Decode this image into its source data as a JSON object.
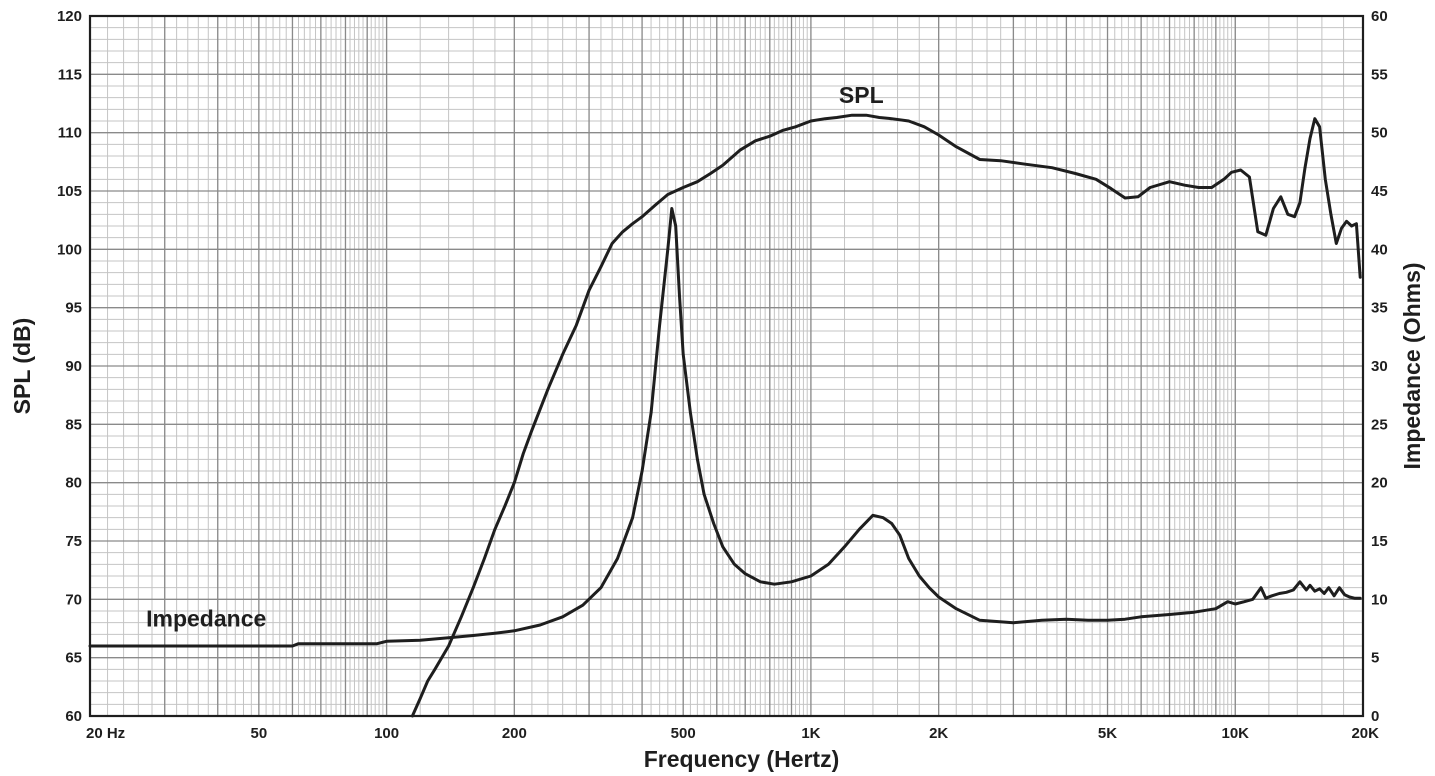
{
  "chart_data": {
    "type": "line",
    "xlabel": "Frequency (Hertz)",
    "ylabel": "SPL (dB)",
    "y2label": "Impedance (Ohms)",
    "xscale": "log",
    "xlim": [
      20,
      20000
    ],
    "ylim": [
      60,
      120
    ],
    "y2lim": [
      0,
      60
    ],
    "grid": true,
    "x_ticks": [
      {
        "value": 20,
        "label": "20  Hz"
      },
      {
        "value": 50,
        "label": "50"
      },
      {
        "value": 100,
        "label": "100"
      },
      {
        "value": 200,
        "label": "200"
      },
      {
        "value": 500,
        "label": "500"
      },
      {
        "value": 1000,
        "label": "1K"
      },
      {
        "value": 2000,
        "label": "2K"
      },
      {
        "value": 5000,
        "label": "5K"
      },
      {
        "value": 10000,
        "label": "10K"
      },
      {
        "value": 20000,
        "label": "20K"
      }
    ],
    "y_ticks": [
      "60",
      "65",
      "70",
      "75",
      "80",
      "85",
      "90",
      "95",
      "100",
      "105",
      "110",
      "115",
      "120"
    ],
    "y2_ticks": [
      "0",
      "5",
      "10",
      "15",
      "20",
      "25",
      "30",
      "35",
      "40",
      "45",
      "50",
      "55",
      "60"
    ],
    "annotations": [
      {
        "text": "SPL",
        "series": "SPL"
      },
      {
        "text": "Impedance",
        "series": "Impedance"
      }
    ],
    "series": [
      {
        "name": "SPL",
        "axis": "left",
        "x": [
          115,
          120,
          125,
          130,
          140,
          150,
          160,
          170,
          180,
          190,
          200,
          210,
          220,
          240,
          260,
          280,
          300,
          320,
          340,
          360,
          380,
          400,
          430,
          460,
          500,
          540,
          580,
          620,
          680,
          740,
          800,
          860,
          920,
          1000,
          1080,
          1150,
          1250,
          1350,
          1450,
          1550,
          1700,
          1850,
          2000,
          2200,
          2500,
          2800,
          3200,
          3700,
          4200,
          4700,
          5100,
          5500,
          5900,
          6300,
          7000,
          7600,
          8200,
          8800,
          9400,
          9800,
          10300,
          10800,
          11300,
          11800,
          12300,
          12800,
          13300,
          13800,
          14200,
          14600,
          15000,
          15400,
          15800,
          16300,
          16800,
          17300,
          17800,
          18300,
          18800,
          19300,
          19700
        ],
        "y": [
          60,
          61.5,
          63,
          64,
          66,
          68.5,
          71,
          73.5,
          76,
          78,
          80,
          82.5,
          84.5,
          88,
          91,
          93.5,
          96.5,
          98.5,
          100.5,
          101.5,
          102.2,
          102.8,
          103.8,
          104.7,
          105.3,
          105.8,
          106.5,
          107.2,
          108.5,
          109.3,
          109.7,
          110.2,
          110.5,
          111,
          111.2,
          111.3,
          111.5,
          111.5,
          111.3,
          111.2,
          111,
          110.5,
          109.8,
          108.8,
          107.7,
          107.6,
          107.3,
          107,
          106.5,
          106,
          105.2,
          104.4,
          104.5,
          105.3,
          105.8,
          105.5,
          105.3,
          105.3,
          106,
          106.6,
          106.8,
          106.2,
          101.5,
          101.2,
          103.5,
          104.5,
          103,
          102.8,
          104,
          107,
          109.5,
          111.2,
          110.5,
          106,
          103,
          100.5,
          101.8,
          102.4,
          102,
          102.2,
          97.6
        ]
      },
      {
        "name": "Impedance",
        "axis": "right",
        "x": [
          20,
          60,
          62,
          95,
          100,
          120,
          140,
          160,
          180,
          200,
          230,
          260,
          290,
          320,
          350,
          380,
          400,
          420,
          440,
          460,
          470,
          480,
          490,
          500,
          520,
          540,
          560,
          590,
          620,
          660,
          700,
          760,
          820,
          900,
          1000,
          1100,
          1200,
          1300,
          1400,
          1480,
          1550,
          1620,
          1700,
          1800,
          1900,
          2000,
          2200,
          2500,
          3000,
          3500,
          4000,
          4500,
          5000,
          5500,
          6000,
          7000,
          8000,
          9000,
          9600,
          10000,
          10500,
          11000,
          11500,
          11800,
          12200,
          12700,
          13200,
          13700,
          14200,
          14700,
          15000,
          15400,
          15800,
          16200,
          16600,
          17100,
          17600,
          18100,
          18600,
          19100,
          19700
        ],
        "y": [
          6,
          6,
          6.2,
          6.2,
          6.4,
          6.5,
          6.7,
          6.9,
          7.1,
          7.3,
          7.8,
          8.5,
          9.5,
          11,
          13.5,
          17,
          21,
          26,
          33.5,
          40,
          43.5,
          42,
          36,
          31,
          26,
          22,
          19,
          16.5,
          14.5,
          13,
          12.2,
          11.5,
          11.3,
          11.5,
          12,
          13,
          14.5,
          16,
          17.2,
          17,
          16.5,
          15.5,
          13.5,
          12,
          11,
          10.2,
          9.2,
          8.2,
          8,
          8.2,
          8.3,
          8.2,
          8.2,
          8.3,
          8.5,
          8.7,
          8.9,
          9.2,
          9.8,
          9.6,
          9.8,
          10,
          11,
          10.1,
          10.3,
          10.5,
          10.6,
          10.8,
          11.5,
          10.8,
          11.2,
          10.7,
          10.9,
          10.5,
          11,
          10.3,
          11,
          10.4,
          10.2,
          10.1,
          10.1
        ]
      }
    ]
  }
}
